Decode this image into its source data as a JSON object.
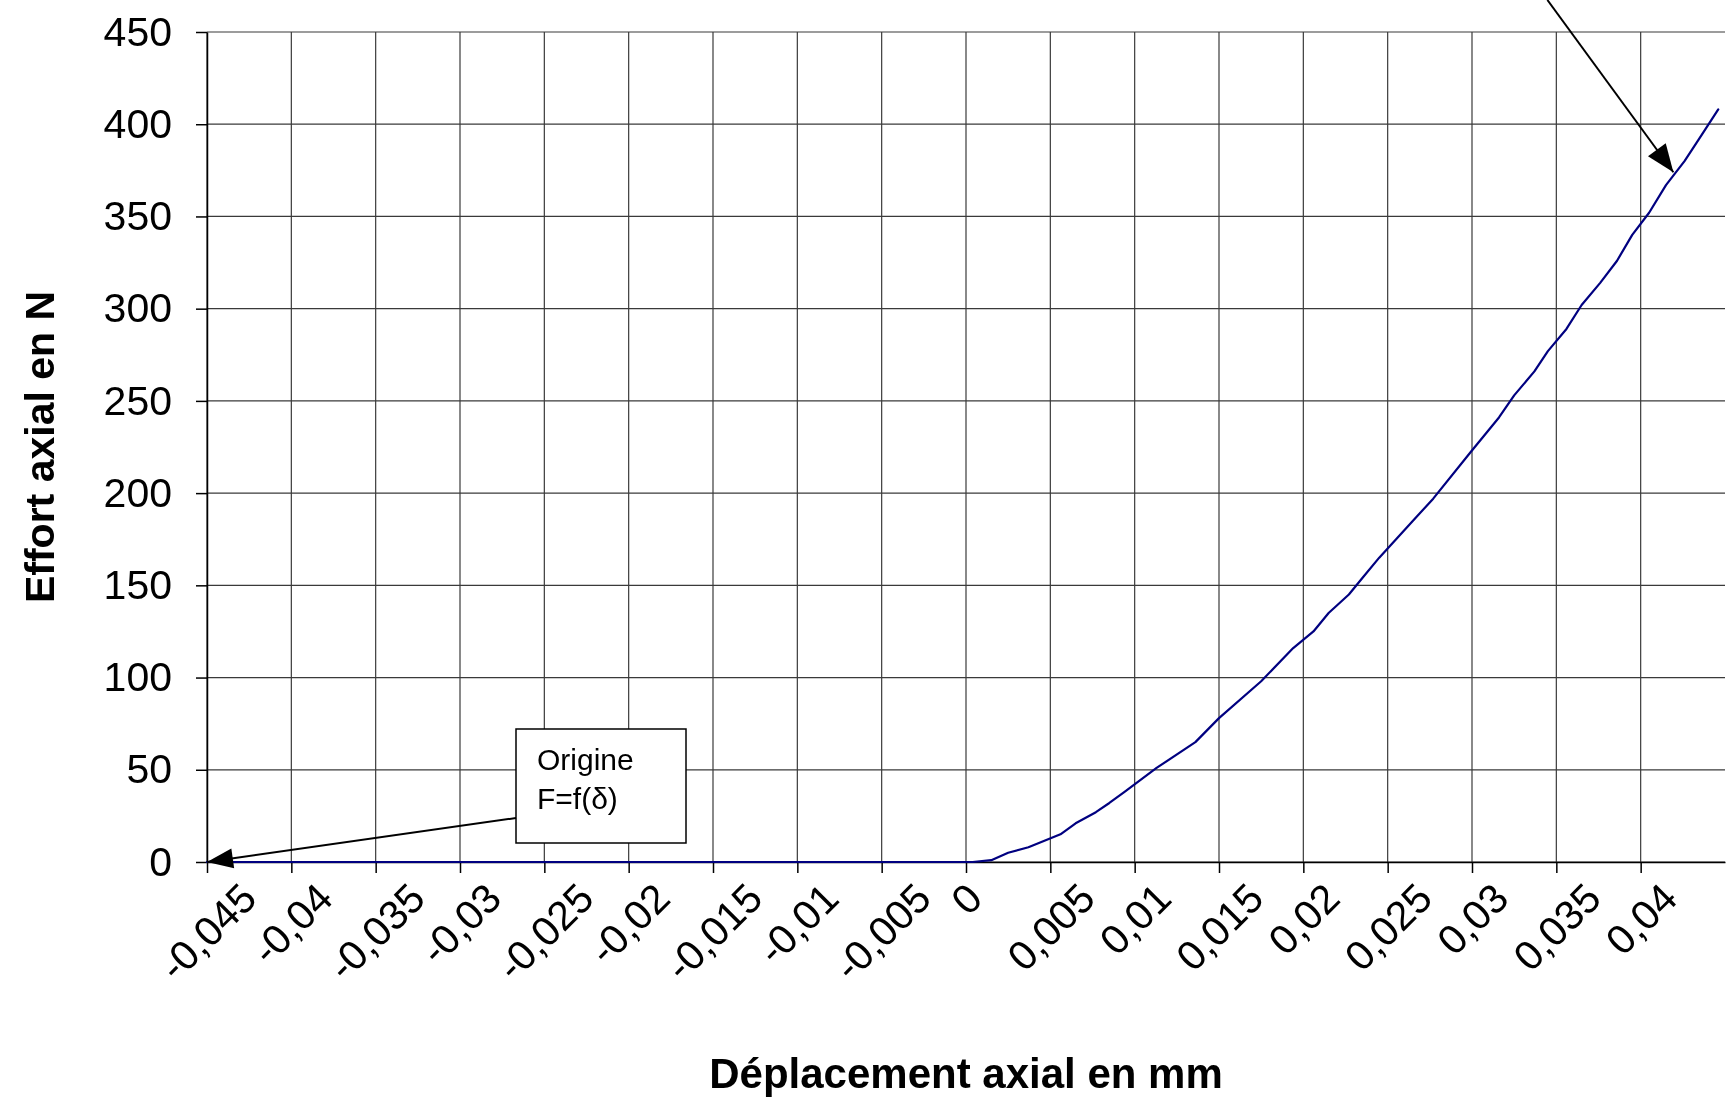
{
  "chart_data": {
    "type": "line",
    "xlabel": "Déplacement axial en mm",
    "ylabel": "Effort axial en N",
    "x": [
      -0.045,
      -0.03,
      -0.015,
      0,
      0.0004,
      0.0015,
      0.0025,
      0.0037,
      0.0056,
      0.0065,
      0.0077,
      0.0085,
      0.0094,
      0.0113,
      0.0136,
      0.015,
      0.0175,
      0.0194,
      0.0206,
      0.0215,
      0.0227,
      0.0235,
      0.0245,
      0.0255,
      0.0265,
      0.0277,
      0.0299,
      0.0316,
      0.0325,
      0.0337,
      0.0345,
      0.0356,
      0.0365,
      0.0376,
      0.0386,
      0.0395,
      0.0405,
      0.0415,
      0.0426,
      0.0436,
      0.0446
    ],
    "series": [
      {
        "color": "#000080",
        "values": [
          0,
          0,
          0,
          0,
          0,
          1,
          5,
          8,
          15,
          21,
          27,
          32,
          38,
          51,
          65,
          78,
          98,
          116,
          125,
          135,
          145,
          154,
          165,
          175,
          185,
          197,
          222,
          241,
          253,
          266,
          277,
          289,
          302,
          314,
          326,
          340,
          352,
          367,
          380,
          394,
          408
        ]
      }
    ],
    "xlim": [
      -0.045,
      0.045
    ],
    "ylim": [
      0,
      450
    ],
    "xticks": [
      {
        "value": -0.045,
        "label": "-0,045"
      },
      {
        "value": -0.04,
        "label": "-0,04"
      },
      {
        "value": -0.035,
        "label": "-0,035"
      },
      {
        "value": -0.03,
        "label": "-0,03"
      },
      {
        "value": -0.025,
        "label": "-0,025"
      },
      {
        "value": -0.02,
        "label": "-0,02"
      },
      {
        "value": -0.015,
        "label": "-0,015"
      },
      {
        "value": -0.01,
        "label": "-0,01"
      },
      {
        "value": -0.005,
        "label": "-0,005"
      },
      0,
      {
        "value": 0.005,
        "label": "0,005"
      },
      {
        "value": 0.01,
        "label": "0,01"
      },
      {
        "value": 0.015,
        "label": "0,015"
      },
      {
        "value": 0.02,
        "label": "0,02"
      },
      {
        "value": 0.025,
        "label": "0,025"
      },
      {
        "value": 0.03,
        "label": "0,03"
      },
      {
        "value": 0.035,
        "label": "0,035"
      },
      {
        "value": 0.04,
        "label": "0,04"
      }
    ],
    "yticks": [
      0,
      50,
      100,
      150,
      200,
      250,
      300,
      350,
      400,
      450
    ],
    "grid": true,
    "line_style": "solid",
    "annotations": [
      {
        "text": "Origine\nF=f(δ)",
        "x": -0.045,
        "y": 0
      }
    ]
  }
}
